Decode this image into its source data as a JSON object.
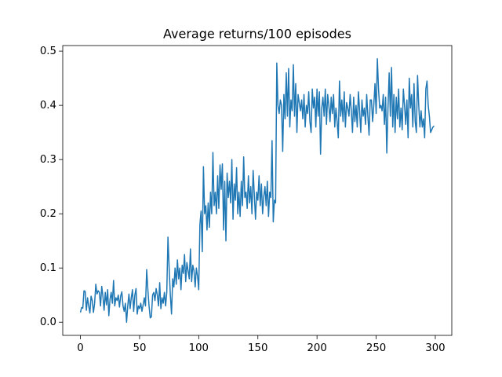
{
  "chart_data": {
    "type": "line",
    "title": "Average returns/100 episodes",
    "color": "#1f77b4",
    "x": [
      0,
      1,
      2,
      3,
      4,
      5,
      6,
      7,
      8,
      9,
      10,
      11,
      12,
      13,
      14,
      15,
      16,
      17,
      18,
      19,
      20,
      21,
      22,
      23,
      24,
      25,
      26,
      27,
      28,
      29,
      30,
      31,
      32,
      33,
      34,
      35,
      36,
      37,
      38,
      39,
      40,
      41,
      42,
      43,
      44,
      45,
      46,
      47,
      48,
      49,
      50,
      51,
      52,
      53,
      54,
      55,
      56,
      57,
      58,
      59,
      60,
      61,
      62,
      63,
      64,
      65,
      66,
      67,
      68,
      69,
      70,
      71,
      72,
      73,
      74,
      75,
      76,
      77,
      78,
      79,
      80,
      81,
      82,
      83,
      84,
      85,
      86,
      87,
      88,
      89,
      90,
      91,
      92,
      93,
      94,
      95,
      96,
      97,
      98,
      99,
      100,
      101,
      102,
      103,
      104,
      105,
      106,
      107,
      108,
      109,
      110,
      111,
      112,
      113,
      114,
      115,
      116,
      117,
      118,
      119,
      120,
      121,
      122,
      123,
      124,
      125,
      126,
      127,
      128,
      129,
      130,
      131,
      132,
      133,
      134,
      135,
      136,
      137,
      138,
      139,
      140,
      141,
      142,
      143,
      144,
      145,
      146,
      147,
      148,
      149,
      150,
      151,
      152,
      153,
      154,
      155,
      156,
      157,
      158,
      159,
      160,
      161,
      162,
      163,
      164,
      165,
      166,
      167,
      168,
      169,
      170,
      171,
      172,
      173,
      174,
      175,
      176,
      177,
      178,
      179,
      180,
      181,
      182,
      183,
      184,
      185,
      186,
      187,
      188,
      189,
      190,
      191,
      192,
      193,
      194,
      195,
      196,
      197,
      198,
      199,
      200,
      201,
      202,
      203,
      204,
      205,
      206,
      207,
      208,
      209,
      210,
      211,
      212,
      213,
      214,
      215,
      216,
      217,
      218,
      219,
      220,
      221,
      222,
      223,
      224,
      225,
      226,
      227,
      228,
      229,
      230,
      231,
      232,
      233,
      234,
      235,
      236,
      237,
      238,
      239,
      240,
      241,
      242,
      243,
      244,
      245,
      246,
      247,
      248,
      249,
      250,
      251,
      252,
      253,
      254,
      255,
      256,
      257,
      258,
      259,
      260,
      261,
      262,
      263,
      264,
      265,
      266,
      267,
      268,
      269,
      270,
      271,
      272,
      273,
      274,
      275,
      276,
      277,
      278,
      279,
      280,
      281,
      282,
      283,
      284,
      285,
      286,
      287,
      288,
      289,
      290,
      291,
      292,
      293,
      294,
      295,
      296,
      297,
      298,
      299
    ],
    "values": [
      0.018,
      0.027,
      0.026,
      0.058,
      0.057,
      0.022,
      0.045,
      0.03,
      0.017,
      0.048,
      0.04,
      0.018,
      0.035,
      0.07,
      0.052,
      0.058,
      0.055,
      0.03,
      0.066,
      0.048,
      0.022,
      0.055,
      0.032,
      0.06,
      0.012,
      0.042,
      0.055,
      0.035,
      0.077,
      0.03,
      0.045,
      0.04,
      0.05,
      0.028,
      0.048,
      0.056,
      0.03,
      0.02,
      0.035,
      0.0,
      0.03,
      0.052,
      0.025,
      0.045,
      0.06,
      0.02,
      0.05,
      0.062,
      0.015,
      0.03,
      0.025,
      0.035,
      0.02,
      0.032,
      0.045,
      0.03,
      0.097,
      0.06,
      0.03,
      0.008,
      0.01,
      0.05,
      0.055,
      0.04,
      0.062,
      0.05,
      0.03,
      0.073,
      0.025,
      0.045,
      0.035,
      0.055,
      0.03,
      0.055,
      0.157,
      0.1,
      0.05,
      0.015,
      0.08,
      0.065,
      0.1,
      0.07,
      0.115,
      0.08,
      0.1,
      0.06,
      0.105,
      0.09,
      0.125,
      0.075,
      0.11,
      0.095,
      0.08,
      0.135,
      0.075,
      0.105,
      0.095,
      0.065,
      0.1,
      0.085,
      0.06,
      0.18,
      0.205,
      0.13,
      0.287,
      0.2,
      0.215,
      0.17,
      0.22,
      0.175,
      0.24,
      0.2,
      0.313,
      0.215,
      0.24,
      0.2,
      0.27,
      0.21,
      0.29,
      0.245,
      0.292,
      0.17,
      0.26,
      0.15,
      0.275,
      0.23,
      0.26,
      0.22,
      0.3,
      0.19,
      0.255,
      0.225,
      0.285,
      0.2,
      0.24,
      0.195,
      0.26,
      0.215,
      0.305,
      0.23,
      0.24,
      0.21,
      0.27,
      0.22,
      0.25,
      0.2,
      0.28,
      0.235,
      0.19,
      0.24,
      0.225,
      0.27,
      0.215,
      0.255,
      0.2,
      0.232,
      0.25,
      0.215,
      0.26,
      0.195,
      0.24,
      0.23,
      0.335,
      0.185,
      0.225,
      0.22,
      0.478,
      0.4,
      0.385,
      0.41,
      0.4,
      0.315,
      0.42,
      0.375,
      0.46,
      0.38,
      0.468,
      0.36,
      0.41,
      0.39,
      0.475,
      0.38,
      0.44,
      0.35,
      0.42,
      0.405,
      0.39,
      0.41,
      0.375,
      0.42,
      0.36,
      0.4,
      0.385,
      0.425,
      0.37,
      0.35,
      0.43,
      0.395,
      0.415,
      0.36,
      0.43,
      0.38,
      0.425,
      0.31,
      0.395,
      0.415,
      0.38,
      0.43,
      0.365,
      0.42,
      0.4,
      0.37,
      0.415,
      0.385,
      0.42,
      0.36,
      0.395,
      0.37,
      0.34,
      0.445,
      0.38,
      0.41,
      0.37,
      0.425,
      0.36,
      0.405,
      0.395,
      0.38,
      0.42,
      0.39,
      0.35,
      0.415,
      0.37,
      0.4,
      0.36,
      0.425,
      0.39,
      0.35,
      0.41,
      0.38,
      0.395,
      0.365,
      0.42,
      0.38,
      0.345,
      0.41,
      0.41,
      0.37,
      0.4,
      0.44,
      0.385,
      0.486,
      0.43,
      0.395,
      0.4,
      0.39,
      0.42,
      0.365,
      0.415,
      0.312,
      0.395,
      0.46,
      0.38,
      0.47,
      0.36,
      0.42,
      0.35,
      0.415,
      0.375,
      0.43,
      0.36,
      0.395,
      0.355,
      0.43,
      0.4,
      0.365,
      0.41,
      0.34,
      0.45,
      0.395,
      0.42,
      0.36,
      0.44,
      0.37,
      0.35,
      0.455,
      0.4,
      0.36,
      0.39,
      0.36,
      0.375,
      0.34,
      0.43,
      0.445,
      0.4,
      0.38,
      0.35,
      0.355,
      0.36,
      0.362
    ],
    "xlim": [
      -14.95,
      313.95
    ],
    "xticks": [
      0,
      50,
      100,
      150,
      200,
      250,
      300
    ],
    "ylim": [
      -0.0243,
      0.5103
    ],
    "yticks": [
      {
        "value": 0,
        "label": "0.0"
      },
      0.1,
      0.2,
      0.3,
      0.4,
      0.5
    ]
  }
}
